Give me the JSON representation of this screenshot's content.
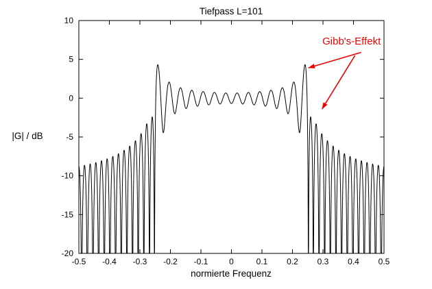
{
  "page": {
    "background": "#ffffff"
  },
  "chart_data": {
    "type": "line",
    "title": "Tiefpass L=101",
    "xlabel": "normierte Frequenz",
    "ylabel": "|G| / dB",
    "xlim": [
      -0.5,
      0.5
    ],
    "ylim": [
      -20,
      10
    ],
    "grid": false,
    "line_color": "#000000",
    "axis_color": "#000000",
    "xticks": {
      "values": [
        -0.5,
        -0.4,
        -0.3,
        -0.2,
        -0.1,
        0,
        0.1,
        0.2,
        0.3,
        0.4,
        0.5
      ],
      "labels": [
        "-0.5",
        "-0.4",
        "-0.3",
        "-0.2",
        "-0.1",
        "0",
        "0.1",
        "0.2",
        "0.3",
        "0.4",
        "0.5"
      ]
    },
    "yticks": {
      "values": [
        10,
        5,
        0,
        -5,
        -10,
        -15,
        -20
      ],
      "labels": [
        "10",
        "5",
        "0",
        "-5",
        "-10",
        "-15",
        "-20"
      ]
    },
    "curve": {
      "model": "truncated-fourier-lowpass-magnitude-dB",
      "filter_length": 101,
      "cutoff": 0.25,
      "ripple_spacing": 0.01852,
      "transition_width": 0.004,
      "passband_level_dB": 0,
      "overshoot_peak_dB": 4.3,
      "stopband_first_peak_dB": -2.5,
      "stopband_edge_peak_dB": -8.9,
      "passband_ripple_near": 1.17,
      "passband_ripple_far": 0.04,
      "passband_decay_pow": 1.3,
      "stopband_ripple_base": 0.27,
      "stopband_ripple_near": 0.72,
      "clip_db": -20,
      "samples": 4500
    },
    "annotation": {
      "label": "Gibb's-Effekt",
      "color": "#ee0000",
      "text_pos": [
        0.298,
        6.9
      ],
      "arrows": [
        {
          "from": [
            0.425,
            5.9
          ],
          "to": [
            0.252,
            3.9
          ]
        },
        {
          "from": [
            0.405,
            5.5
          ],
          "to": [
            0.297,
            -1.4
          ]
        }
      ]
    }
  }
}
